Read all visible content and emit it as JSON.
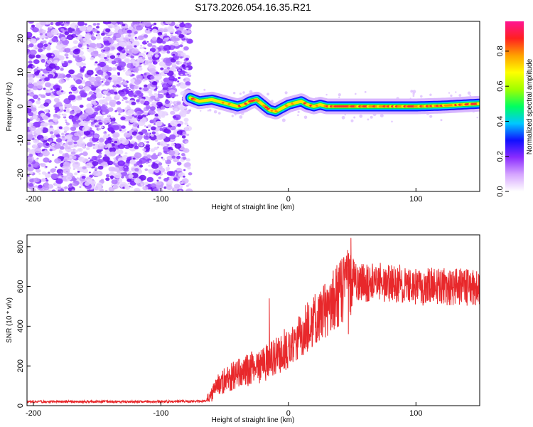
{
  "title": "S173.2026.054.16.35.R21",
  "chart_data": [
    {
      "type": "heatmap",
      "name": "spectrogram",
      "xlabel": "Height of straight line (km)",
      "ylabel": "Frequency (Hz)",
      "xlim": [
        -205,
        150
      ],
      "ylim": [
        -25,
        25
      ],
      "xticks": [
        -200,
        -100,
        0,
        100
      ],
      "yticks": [
        -20,
        -10,
        0,
        10,
        20
      ],
      "noise_region": [
        -205,
        -77
      ],
      "signal_track": {
        "x": [
          -77,
          -70,
          -60,
          -50,
          -45,
          -40,
          -35,
          -30,
          -25,
          -20,
          -15,
          -10,
          -5,
          0,
          5,
          10,
          15,
          20,
          25,
          30,
          40,
          60,
          80,
          100,
          120,
          140,
          150
        ],
        "freq": [
          2.5,
          1.5,
          2.0,
          1.0,
          0.5,
          0.0,
          0.5,
          1.5,
          2.0,
          0.5,
          -1.0,
          -1.5,
          -0.5,
          0.5,
          1.0,
          1.5,
          0.5,
          0.0,
          0.5,
          0.0,
          0.0,
          0.0,
          0.0,
          0.0,
          0.2,
          0.6,
          0.8
        ]
      },
      "colorbar": {
        "label": "Normalized spectral amplitude",
        "ticks": [
          0.0,
          0.2,
          0.4,
          0.6,
          0.8
        ],
        "range": [
          0,
          0.97
        ],
        "colors": [
          "#ffffff",
          "#d6a6ff",
          "#8b2cff",
          "#1010ff",
          "#00c8ff",
          "#00ff60",
          "#a0ff00",
          "#ffff00",
          "#ffa000",
          "#ff2020",
          "#ff1493"
        ]
      }
    },
    {
      "type": "line",
      "name": "snr",
      "xlabel": "Height of straight line (km)",
      "ylabel": "SNR (10 * v/v)",
      "xlim": [
        -205,
        150
      ],
      "ylim": [
        0,
        860
      ],
      "xticks": [
        -200,
        -100,
        0,
        100
      ],
      "yticks": [
        0,
        200,
        400,
        600,
        800
      ],
      "color": "#e8282b",
      "trend": {
        "x": [
          -205,
          -100,
          -70,
          -64,
          -55,
          -40,
          -20,
          0,
          20,
          35,
          45,
          50,
          60,
          80,
          100,
          120,
          150
        ],
        "y": [
          20,
          20,
          22,
          25,
          110,
          160,
          210,
          300,
          430,
          530,
          600,
          640,
          620,
          620,
          600,
          600,
          590
        ]
      },
      "notable_points": [
        {
          "x": -15,
          "y": 540
        },
        {
          "x": 49,
          "y": 845
        },
        {
          "x": 47,
          "y": 360
        }
      ]
    }
  ]
}
